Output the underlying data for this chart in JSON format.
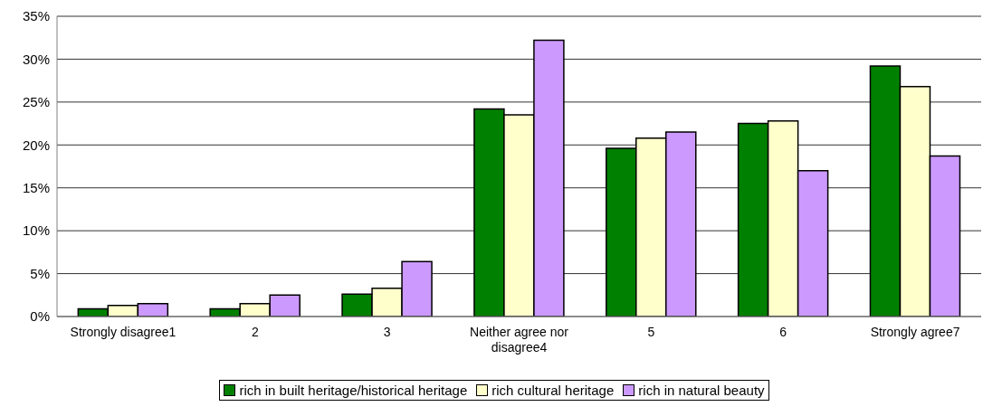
{
  "chart_data": {
    "type": "bar",
    "categories": [
      "Strongly disagree1",
      "2",
      "3",
      "Neither agree nor disagree4",
      "5",
      "6",
      "Strongly agree7"
    ],
    "series": [
      {
        "name": "rich in built heritage/historical heritage",
        "color": "#008000",
        "values": [
          0.9,
          0.9,
          2.6,
          24.2,
          19.6,
          22.5,
          29.2
        ]
      },
      {
        "name": "rich cultural heritage",
        "color": "#ffffcc",
        "values": [
          1.3,
          1.5,
          3.3,
          23.5,
          20.8,
          22.8,
          26.8
        ]
      },
      {
        "name": "rich in natural beauty",
        "color": "#cc99ff",
        "values": [
          1.5,
          2.5,
          6.4,
          32.2,
          21.5,
          17.0,
          18.7
        ]
      }
    ],
    "ylim": [
      0,
      35
    ],
    "yticks": [
      {
        "value": 0,
        "label": "0%"
      },
      {
        "value": 5,
        "label": "5%"
      },
      {
        "value": 10,
        "label": "10%"
      },
      {
        "value": 15,
        "label": "15%"
      },
      {
        "value": 20,
        "label": "20%"
      },
      {
        "value": 25,
        "label": "25%"
      },
      {
        "value": 30,
        "label": "30%"
      },
      {
        "value": 35,
        "label": "35%"
      }
    ],
    "grid": "y",
    "legend": "bottom"
  }
}
